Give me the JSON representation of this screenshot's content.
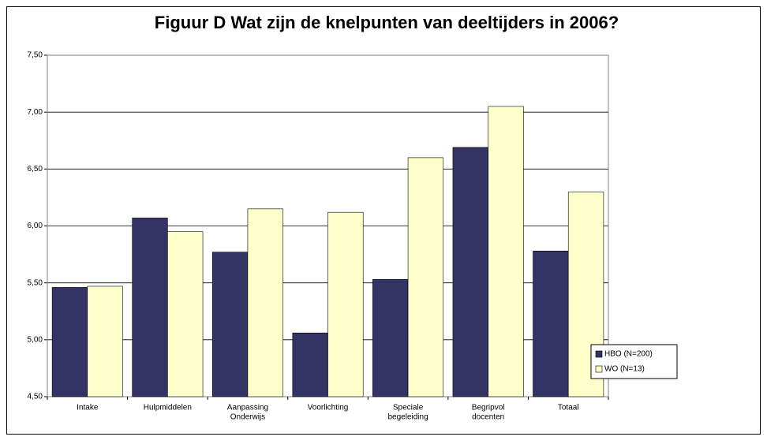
{
  "chart_data": {
    "type": "bar",
    "title": "Figuur D Wat zijn de knelpunten van deeltijders in 2006?",
    "categories": [
      [
        "Intake"
      ],
      [
        "Hulpmiddelen"
      ],
      [
        "Aanpassing",
        "Onderwijs"
      ],
      [
        "Voorlichting"
      ],
      [
        "Speciale",
        "begeleiding"
      ],
      [
        "Begripvol",
        "docenten"
      ],
      [
        "Totaal"
      ]
    ],
    "series": [
      {
        "name": "HBO (N=200)",
        "color": "#333366",
        "values": [
          5.46,
          6.07,
          5.77,
          5.06,
          5.53,
          6.69,
          5.78
        ]
      },
      {
        "name": "WO (N=13)",
        "color": "#ffffcc",
        "values": [
          5.47,
          5.95,
          6.15,
          6.12,
          6.6,
          7.05,
          6.3
        ]
      }
    ],
    "ylim": [
      4.5,
      7.5
    ],
    "yticks": [
      {
        "value": 4.5,
        "label": "4,50"
      },
      {
        "value": 5,
        "label": "5,00"
      },
      {
        "value": 5.5,
        "label": "5,50"
      },
      {
        "value": 6,
        "label": "6,00"
      },
      {
        "value": 6.5,
        "label": "6,50"
      },
      {
        "value": 7,
        "label": "7,00"
      },
      {
        "value": 7.5,
        "label": "7,50"
      }
    ],
    "grid": true,
    "legend": "right"
  }
}
